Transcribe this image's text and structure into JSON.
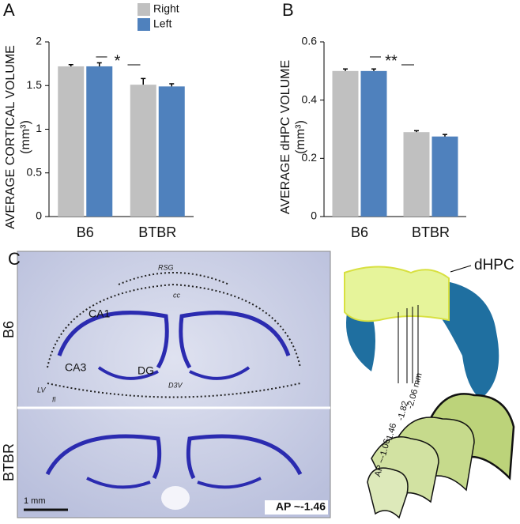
{
  "chart_data": [
    {
      "type": "bar",
      "panel": "A",
      "ylabel": "AVERAGE CORTICAL VOLUME",
      "ylabel_unit": "(mm³)",
      "categories": [
        "B6",
        "BTBR"
      ],
      "series": [
        {
          "name": "Right",
          "color": "#c0c0c0",
          "values": [
            1.72,
            1.51
          ],
          "errors": [
            0.02,
            0.07
          ]
        },
        {
          "name": "Left",
          "color": "#4f81bd",
          "values": [
            1.72,
            1.49
          ],
          "errors": [
            0.04,
            0.03
          ]
        }
      ],
      "ylim": [
        0,
        2
      ],
      "yticks": [
        0,
        0.5,
        1,
        1.5,
        2
      ],
      "annotation": "*",
      "legend": "top"
    },
    {
      "type": "bar",
      "panel": "B",
      "ylabel": "AVERAGE dHPC VOLUME",
      "ylabel_unit": "(mm³)",
      "categories": [
        "B6",
        "BTBR"
      ],
      "series": [
        {
          "name": "Right",
          "color": "#c0c0c0",
          "values": [
            0.5,
            0.29
          ],
          "errors": [
            0.007,
            0.005
          ]
        },
        {
          "name": "Left",
          "color": "#4f81bd",
          "values": [
            0.5,
            0.275
          ],
          "errors": [
            0.007,
            0.007
          ]
        }
      ],
      "ylim": [
        0,
        0.6
      ],
      "yticks": [
        0,
        0.2,
        0.4,
        0.6
      ],
      "annotation": "**"
    }
  ],
  "panel_c": {
    "label": "C",
    "rows": [
      "B6",
      "BTBR"
    ],
    "regions": [
      "RSG",
      "cc",
      "CA1",
      "CA3",
      "DG",
      "D3V",
      "LV",
      "fi"
    ],
    "scale_bar": "1 mm",
    "ap": "AP ~-1.46",
    "model": "dHPC",
    "sections": [
      "AP ~-1.06",
      "-1.46",
      "-1.82",
      "-2.06 mm"
    ]
  }
}
